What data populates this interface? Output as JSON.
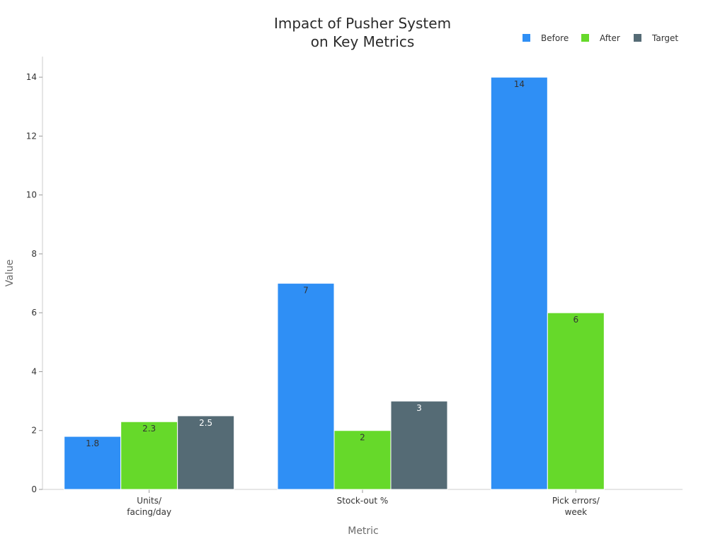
{
  "chart_data": {
    "type": "bar",
    "title": [
      "Impact of Pusher System",
      "on Key Metrics"
    ],
    "xlabel": "Metric",
    "ylabel": "Value",
    "categories": [
      [
        "Units/",
        "facing/day"
      ],
      [
        "Stock-out %"
      ],
      [
        "Pick errors/",
        "week"
      ]
    ],
    "series": [
      {
        "name": "Before",
        "color": "#2f8ff5",
        "values": [
          1.8,
          7,
          14
        ],
        "label_color": "#333333"
      },
      {
        "name": "After",
        "color": "#66d92a",
        "values": [
          2.3,
          2,
          6
        ],
        "label_color": "#333333"
      },
      {
        "name": "Target",
        "color": "#556b75",
        "values": [
          2.5,
          3,
          null
        ],
        "label_color": "#ffffff"
      }
    ],
    "ylim": [
      0,
      14.7
    ],
    "yticks": [
      0,
      2,
      4,
      6,
      8,
      10,
      12,
      14
    ],
    "grid": false,
    "legend_position": "top-right"
  }
}
